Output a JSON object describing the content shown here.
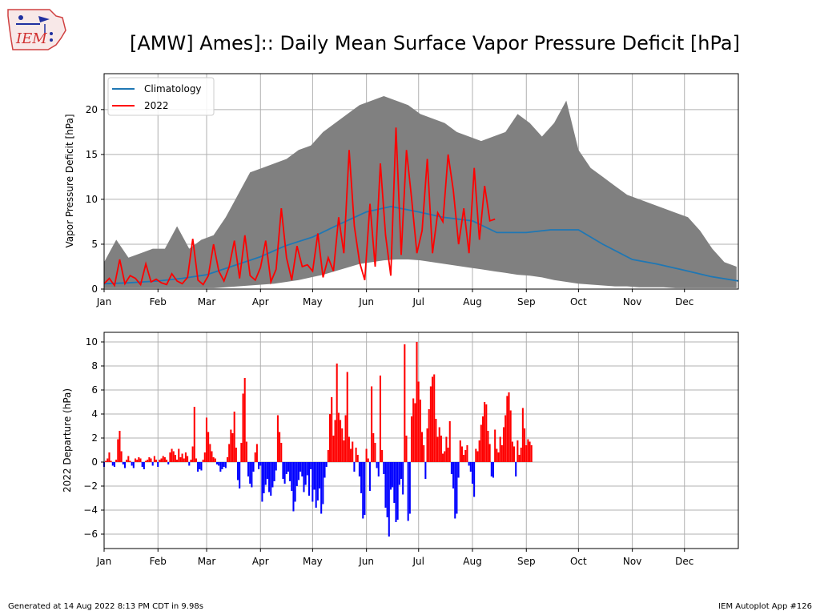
{
  "title": "[AMW] Ames]:: Daily Mean Surface Vapor Pressure Deficit [hPa]",
  "logo_text": "IEM",
  "footer": {
    "left": "Generated at 14 Aug 2022 8:13 PM CDT in 9.98s",
    "right": "IEM Autoplot App #126"
  },
  "colors": {
    "band": "#808080",
    "climatology": "#1f77b4",
    "year": "#ff0000",
    "positive": "#ff0000",
    "negative": "#0000ff"
  },
  "months": [
    "Jan",
    "Feb",
    "Mar",
    "Apr",
    "May",
    "Jun",
    "Jul",
    "Aug",
    "Sep",
    "Oct",
    "Nov",
    "Dec"
  ],
  "month_start_doy": [
    1,
    32,
    60,
    91,
    121,
    152,
    182,
    213,
    244,
    274,
    305,
    335
  ],
  "chart_data": [
    {
      "type": "area",
      "panel": "top",
      "ylabel": "Vapor Pressure Deficit [hPa]",
      "xlim": [
        1,
        366
      ],
      "ylim": [
        0,
        24
      ],
      "yticks": [
        0,
        5,
        10,
        15,
        20
      ],
      "grid": true,
      "legend": "top-left",
      "band": {
        "doy": [
          1,
          8,
          15,
          22,
          29,
          36,
          43,
          50,
          57,
          64,
          71,
          78,
          85,
          92,
          99,
          106,
          113,
          120,
          127,
          134,
          141,
          148,
          155,
          162,
          169,
          176,
          183,
          190,
          197,
          204,
          211,
          218,
          225,
          232,
          239,
          246,
          253,
          260,
          267,
          274,
          281,
          288,
          295,
          302,
          309,
          316,
          323,
          330,
          337,
          344,
          351,
          358,
          365
        ],
        "min": [
          0.1,
          0.1,
          0.1,
          0.1,
          0.1,
          0.1,
          0.1,
          0.1,
          0.1,
          0.1,
          0.2,
          0.3,
          0.4,
          0.5,
          0.6,
          0.8,
          1.0,
          1.3,
          1.6,
          2.0,
          2.4,
          2.8,
          3.0,
          3.2,
          3.3,
          3.3,
          3.2,
          3.0,
          2.8,
          2.6,
          2.4,
          2.2,
          2.0,
          1.8,
          1.6,
          1.5,
          1.3,
          1.0,
          0.8,
          0.6,
          0.5,
          0.4,
          0.3,
          0.3,
          0.2,
          0.2,
          0.2,
          0.1,
          0.1,
          0.1,
          0.1,
          0.1,
          0.1
        ],
        "max": [
          3.0,
          5.5,
          3.5,
          4.0,
          4.5,
          4.5,
          7.0,
          4.5,
          5.5,
          6.0,
          8.0,
          10.5,
          13.0,
          13.5,
          14.0,
          14.5,
          15.5,
          16.0,
          17.5,
          18.5,
          19.5,
          20.5,
          21.0,
          21.5,
          21.0,
          20.5,
          19.5,
          19.0,
          18.5,
          17.5,
          17.0,
          16.5,
          17.0,
          17.5,
          19.5,
          18.5,
          17.0,
          18.5,
          21.0,
          15.5,
          13.5,
          12.5,
          11.5,
          10.5,
          10.0,
          9.5,
          9.0,
          8.5,
          8.0,
          6.5,
          4.5,
          3.0,
          2.5
        ]
      },
      "series": [
        {
          "name": "Climatology",
          "doy": [
            1,
            15,
            32,
            46,
            60,
            74,
            91,
            105,
            121,
            135,
            152,
            166,
            182,
            196,
            213,
            227,
            244,
            258,
            274,
            288,
            305,
            319,
            335,
            350,
            366
          ],
          "values": [
            0.6,
            0.7,
            0.9,
            1.2,
            1.6,
            2.5,
            3.6,
            4.8,
            5.8,
            7.1,
            8.6,
            9.2,
            8.6,
            8.0,
            7.6,
            6.3,
            6.3,
            6.6,
            6.6,
            5.0,
            3.3,
            2.8,
            2.1,
            1.4,
            0.9
          ]
        },
        {
          "name": "2022",
          "doy": [
            1,
            4,
            7,
            10,
            13,
            16,
            19,
            22,
            25,
            28,
            31,
            34,
            37,
            40,
            43,
            46,
            49,
            52,
            55,
            58,
            61,
            64,
            67,
            70,
            73,
            76,
            79,
            82,
            85,
            88,
            91,
            94,
            97,
            100,
            103,
            106,
            109,
            112,
            115,
            118,
            121,
            124,
            127,
            130,
            133,
            136,
            139,
            142,
            145,
            148,
            151,
            154,
            157,
            160,
            163,
            166,
            169,
            172,
            175,
            178,
            181,
            184,
            187,
            190,
            193,
            196,
            199,
            202,
            205,
            208,
            211,
            214,
            217,
            220,
            223,
            226
          ],
          "values": [
            0.6,
            1.2,
            0.4,
            3.3,
            0.6,
            1.5,
            1.2,
            0.5,
            2.8,
            0.8,
            1.1,
            0.7,
            0.5,
            1.7,
            0.9,
            0.6,
            1.3,
            5.6,
            1.0,
            0.5,
            1.5,
            5.0,
            2.0,
            0.9,
            2.5,
            5.4,
            1.2,
            6.0,
            1.5,
            1.0,
            2.4,
            5.4,
            0.8,
            2.2,
            9.0,
            3.5,
            1.0,
            4.8,
            2.5,
            2.7,
            2.0,
            6.2,
            1.3,
            3.5,
            2.0,
            8.0,
            4.0,
            15.5,
            7.0,
            3.0,
            1.0,
            9.5,
            2.5,
            14.0,
            6.0,
            1.5,
            18.0,
            3.8,
            15.5,
            10.0,
            4.0,
            6.5,
            14.5,
            4.0,
            8.5,
            7.5,
            15.0,
            11.0,
            5.0,
            9.0,
            4.0,
            13.5,
            5.5,
            11.5,
            7.6,
            7.8
          ]
        }
      ]
    },
    {
      "type": "bar",
      "panel": "bottom",
      "ylabel": "2022 Departure (hPa)",
      "xlim": [
        1,
        366
      ],
      "ylim": [
        -7.2,
        10.8
      ],
      "yticks": [
        -6,
        -4,
        -2,
        0,
        2,
        4,
        6,
        8,
        10
      ],
      "grid": true,
      "doy_start": 1,
      "values": [
        -0.4,
        0.1,
        0.3,
        0.8,
        0.1,
        -0.3,
        -0.4,
        0.2,
        1.9,
        2.6,
        0.9,
        -0.2,
        -0.5,
        0.2,
        0.5,
        0.1,
        -0.3,
        -0.5,
        0.3,
        0.2,
        0.4,
        0.3,
        -0.4,
        -0.6,
        0.1,
        0.2,
        0.4,
        0.3,
        -0.3,
        0.5,
        0.2,
        -0.4,
        0.2,
        0.3,
        0.5,
        0.4,
        0.2,
        -0.2,
        0.8,
        1.1,
        0.9,
        0.6,
        0.2,
        1.1,
        0.4,
        0.7,
        0.3,
        0.8,
        0.5,
        -0.3,
        0.2,
        1.3,
        4.6,
        0.3,
        -0.8,
        -0.6,
        -0.7,
        0.2,
        0.8,
        3.7,
        2.5,
        1.5,
        0.9,
        0.4,
        0.3,
        -0.2,
        -0.3,
        -0.8,
        -0.6,
        -0.4,
        -0.5,
        0.4,
        1.5,
        2.7,
        2.4,
        4.2,
        1.2,
        -1.5,
        -2.2,
        1.6,
        5.7,
        7.0,
        1.7,
        -1.2,
        -1.8,
        -2.1,
        -0.8,
        0.8,
        1.5,
        -0.6,
        -0.3,
        -3.3,
        -2.6,
        -1.9,
        -1.4,
        -2.5,
        -2.8,
        -2.1,
        -1.6,
        -0.7,
        3.9,
        2.5,
        1.6,
        -1.4,
        -1.8,
        -1.0,
        -0.8,
        -1.6,
        -2.4,
        -4.1,
        -3.3,
        -2.0,
        -1.5,
        -0.8,
        -1.2,
        -2.5,
        -1.9,
        -1.1,
        -2.8,
        -0.6,
        -3.3,
        -2.3,
        -3.8,
        -3.2,
        -2.2,
        -4.3,
        -3.5,
        -1.3,
        -0.4,
        1.0,
        4.0,
        5.4,
        2.2,
        3.5,
        8.2,
        4.1,
        3.5,
        2.8,
        1.8,
        3.9,
        7.5,
        2.1,
        1.1,
        1.7,
        -0.8,
        1.2,
        0.6,
        -1.2,
        -2.6,
        -4.7,
        -4.4,
        1.1,
        0.3,
        -2.4,
        6.3,
        2.4,
        1.6,
        -0.5,
        -1.2,
        7.2,
        1.0,
        -1.0,
        -3.8,
        -4.6,
        -6.2,
        -2.3,
        -2.1,
        -3.4,
        -5.0,
        -4.8,
        -1.9,
        -1.4,
        -2.7,
        9.8,
        2.2,
        -4.9,
        -4.3,
        3.8,
        5.3,
        4.9,
        10.0,
        6.7,
        5.2,
        2.5,
        1.4,
        -1.4,
        2.8,
        4.4,
        6.3,
        7.1,
        7.3,
        3.6,
        2.1,
        2.9,
        2.2,
        0.7,
        0.9,
        2.1,
        1.2,
        3.4,
        -1.0,
        -2.2,
        -4.7,
        -4.3,
        -1.3,
        1.8,
        1.3,
        0.6,
        1.0,
        1.4,
        -0.3,
        -0.8,
        -1.8,
        -2.9,
        1.1,
        0.9,
        1.8,
        3.1,
        3.8,
        5.0,
        4.8,
        2.6,
        1.5,
        -1.2,
        -1.3,
        2.7,
        1.1,
        0.8,
        2.1,
        1.4,
        2.9,
        3.9,
        5.5,
        5.8,
        4.3,
        1.7,
        1.3,
        -1.2,
        1.8,
        0.6,
        1.2,
        4.5,
        2.8,
        1.4,
        1.9,
        1.7,
        1.4
      ]
    }
  ]
}
